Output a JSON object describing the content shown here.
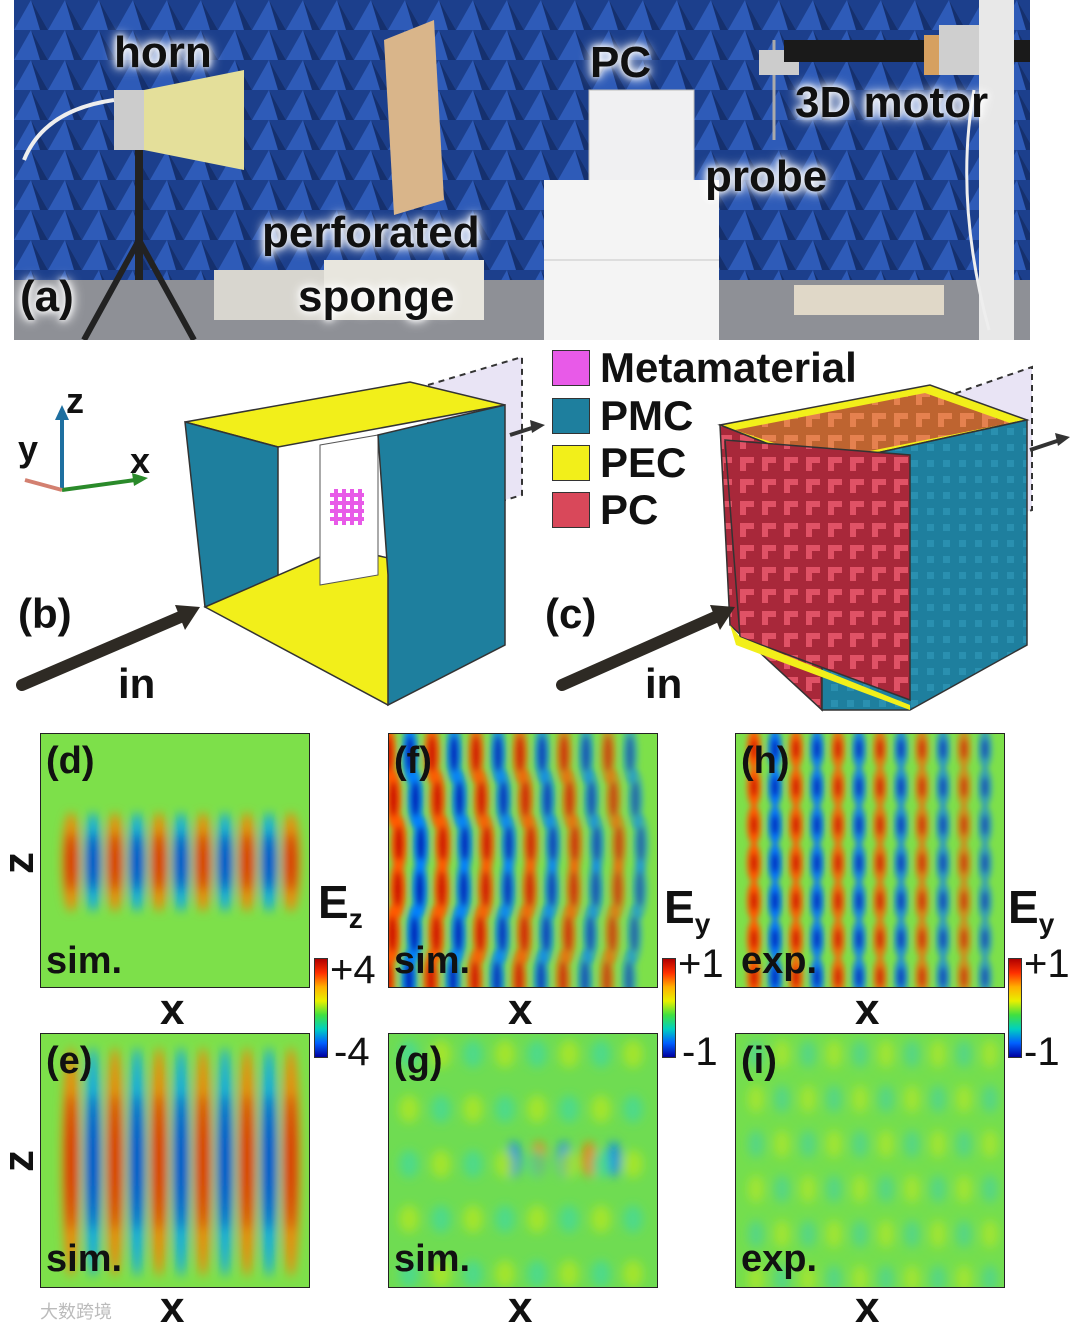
{
  "figure": {
    "panel_a": {
      "tag": "(a)",
      "labels": {
        "horn": "horn",
        "perforated": "perforated",
        "sponge": "sponge",
        "pc": "PC",
        "motor": "3D motor",
        "probe": "probe"
      }
    },
    "axes": {
      "z": "z",
      "y": "y",
      "x": "x"
    },
    "legend": [
      {
        "label": "Metamaterial",
        "color": "#e85ae8"
      },
      {
        "label": "PMC",
        "color": "#1e7f9e"
      },
      {
        "label": "PEC",
        "color": "#f2ef1a"
      },
      {
        "label": "PC",
        "color": "#d9485a"
      }
    ],
    "panel_b": {
      "tag": "(b)",
      "in": "in"
    },
    "panel_c": {
      "tag": "(c)",
      "in": "in"
    },
    "fields": {
      "d": {
        "tag": "(d)",
        "type": "sim.",
        "xlabel": "x",
        "ylabel": "z"
      },
      "e": {
        "tag": "(e)",
        "type": "sim.",
        "xlabel": "x",
        "ylabel": "z"
      },
      "f": {
        "tag": "(f)",
        "type": "sim.",
        "xlabel": "x"
      },
      "g": {
        "tag": "(g)",
        "type": "sim.",
        "xlabel": "x"
      },
      "h": {
        "tag": "(h)",
        "type": "exp.",
        "xlabel": "x"
      },
      "i": {
        "tag": "(i)",
        "type": "exp.",
        "xlabel": "x"
      }
    },
    "colorbars": {
      "ez": {
        "symbol": "E",
        "sub": "z",
        "max": "+4",
        "min": "-4"
      },
      "ey1": {
        "symbol": "E",
        "sub": "y",
        "max": "+1",
        "min": "-1"
      },
      "ey2": {
        "symbol": "E",
        "sub": "y",
        "max": "+1",
        "min": "-1"
      }
    },
    "watermark": "大数跨境"
  }
}
